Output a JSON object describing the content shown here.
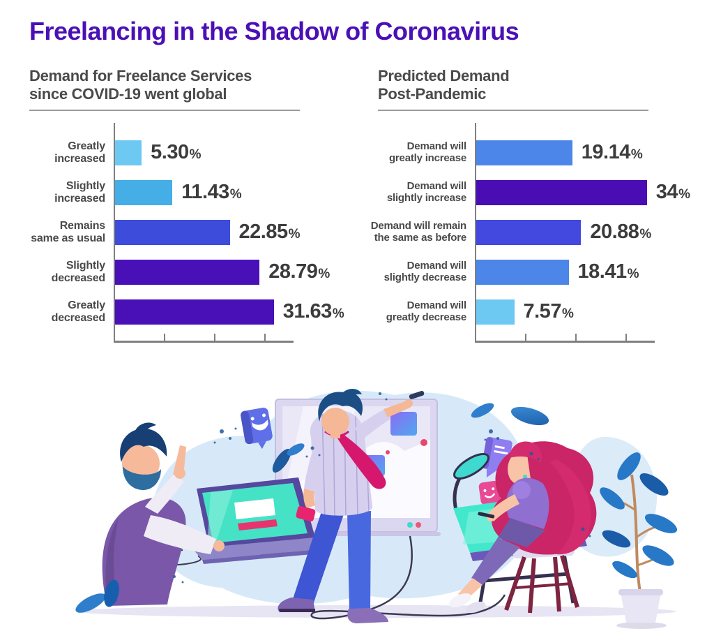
{
  "header": {
    "title": "Freelancing in the Shadow of Coronavirus",
    "title_color": "#4B10B5"
  },
  "theme": {
    "heading_color": "#4A4A4A",
    "label_color": "#4A4A4A",
    "value_color": "#3C3C3C",
    "axis_color": "#7F7F7F"
  },
  "chart_data": [
    {
      "type": "bar",
      "orientation": "horizontal",
      "title": "Demand for Freelance Services since COVID-19 went global",
      "title_lines": [
        "Demand for Freelance Services",
        "since COVID-19 went global"
      ],
      "categories": [
        "Greatly increased",
        "Slightly increased",
        "Remains same as usual",
        "Slightly decreased",
        "Greatly decreased"
      ],
      "category_lines": [
        [
          "Greatly",
          "increased"
        ],
        [
          "Slightly",
          "increased"
        ],
        [
          "Remains",
          "same as usual"
        ],
        [
          "Slightly",
          "decreased"
        ],
        [
          "Greatly",
          "decreased"
        ]
      ],
      "values": [
        5.3,
        11.43,
        22.85,
        28.79,
        31.63
      ],
      "value_labels": [
        "5.30",
        "11.43",
        "22.85",
        "28.79",
        "31.63"
      ],
      "unit": "%",
      "bar_colors": [
        "#6EC9F2",
        "#45AEE6",
        "#3E4CDC",
        "#4A10B8",
        "#4A10B8"
      ],
      "xlim": [
        0,
        35
      ],
      "axis_ticks": [
        10,
        20,
        30
      ],
      "grid": false,
      "legend": false
    },
    {
      "type": "bar",
      "orientation": "horizontal",
      "title": "Predicted Demand Post-Pandemic",
      "title_lines": [
        "Predicted Demand",
        "Post-Pandemic"
      ],
      "categories": [
        "Demand will greatly increase",
        "Demand will slightly increase",
        "Demand will remain the same as before",
        "Demand will slightly decrease",
        "Demand will greatly decrease"
      ],
      "category_lines": [
        [
          "Demand will",
          "greatly increase"
        ],
        [
          "Demand will",
          "slightly increase"
        ],
        [
          "Demand will remain",
          "the same as before"
        ],
        [
          "Demand will",
          "slightly decrease"
        ],
        [
          "Demand will",
          "greatly decrease"
        ]
      ],
      "values": [
        19.14,
        34,
        20.88,
        18.41,
        7.57
      ],
      "value_labels": [
        "19.14",
        "34",
        "20.88",
        "18.41",
        "7.57"
      ],
      "unit": "%",
      "bar_colors": [
        "#4C86E8",
        "#4A0DB3",
        "#4348DF",
        "#4C86E8",
        "#6EC9F2"
      ],
      "xlim": [
        0,
        35
      ],
      "axis_ticks": [
        10,
        20,
        30
      ],
      "grid": false,
      "legend": false
    }
  ],
  "illustration": {
    "name": "freelancers-illustration"
  }
}
